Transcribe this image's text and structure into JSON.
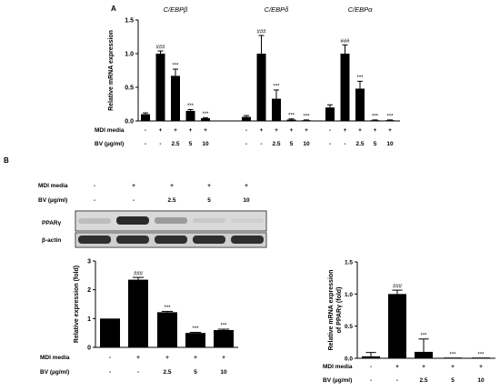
{
  "panel_a": {
    "letter": "A",
    "ylabel": "Relative mRNA expression",
    "yticks": [
      "0.0",
      "0.5",
      "1.0",
      "1.5"
    ],
    "mdi_label": "MDI  media",
    "bv_label": "BV (µg/ml)",
    "mdi_row": [
      "-",
      "+",
      "+",
      "+",
      "+"
    ],
    "bv_row": [
      "-",
      "-",
      "2.5",
      "5",
      "10"
    ]
  },
  "panel_b": {
    "letter": "B",
    "mdi_label": "MDI  media",
    "bv_label": "BV (µg/ml)",
    "mdi_row": [
      "-",
      "+",
      "+",
      "+",
      "+"
    ],
    "bv_row": [
      "-",
      "-",
      "2.5",
      "5",
      "10"
    ],
    "blot_labels": [
      "PPARγ",
      "β-actin"
    ]
  },
  "chart_data": [
    {
      "type": "bar",
      "panel": "A",
      "ylabel": "Relative mRNA expression",
      "ylim": [
        0,
        1.5
      ],
      "yticks": [
        0.0,
        0.5,
        1.0,
        1.5
      ],
      "categories": [
        "-/-",
        "+/-",
        "+/2.5",
        "+/5",
        "+/10"
      ],
      "series": [
        {
          "name": "C/EBPβ",
          "values": [
            0.1,
            1.0,
            0.67,
            0.15,
            0.04
          ],
          "errors": [
            0.02,
            0.04,
            0.1,
            0.02,
            0.01
          ],
          "annotations": [
            "",
            "###",
            "***",
            "***",
            "***"
          ]
        },
        {
          "name": "C/EBPδ",
          "values": [
            0.06,
            1.0,
            0.33,
            0.02,
            0.01
          ],
          "errors": [
            0.02,
            0.27,
            0.13,
            0.01,
            0.005
          ],
          "annotations": [
            "",
            "###",
            "***",
            "***",
            "***"
          ]
        },
        {
          "name": "C/EBPα",
          "values": [
            0.2,
            1.0,
            0.48,
            0.01,
            0.01
          ],
          "errors": [
            0.04,
            0.13,
            0.11,
            0.005,
            0.005
          ],
          "annotations": [
            "",
            "###",
            "***",
            "***",
            "***"
          ]
        }
      ]
    },
    {
      "type": "bar",
      "panel": "B-left",
      "ylabel": "Relative expression (fold)",
      "ylim": [
        0,
        3
      ],
      "yticks": [
        0,
        1,
        2,
        3
      ],
      "categories": [
        "-/-",
        "+/-",
        "+/2.5",
        "+/5",
        "+/10"
      ],
      "values": [
        1.0,
        2.35,
        1.22,
        0.5,
        0.6
      ],
      "errors": [
        0.0,
        0.08,
        0.03,
        0.02,
        0.03
      ],
      "annotations": [
        "",
        "###",
        "***",
        "***",
        "***"
      ]
    },
    {
      "type": "bar",
      "panel": "B-right",
      "ylabel": "Relative mRNA expression\nof PPARγ (fold)",
      "ylim": [
        0,
        1.5
      ],
      "yticks": [
        0.0,
        0.5,
        1.0,
        1.5
      ],
      "categories": [
        "-/-",
        "+/-",
        "+/2.5",
        "+/5",
        "+/10"
      ],
      "values": [
        0.03,
        1.0,
        0.1,
        0.0,
        0.0
      ],
      "errors": [
        0.06,
        0.06,
        0.2,
        0.0,
        0.0
      ],
      "annotations": [
        "",
        "###",
        "***",
        "***",
        "***"
      ]
    }
  ]
}
